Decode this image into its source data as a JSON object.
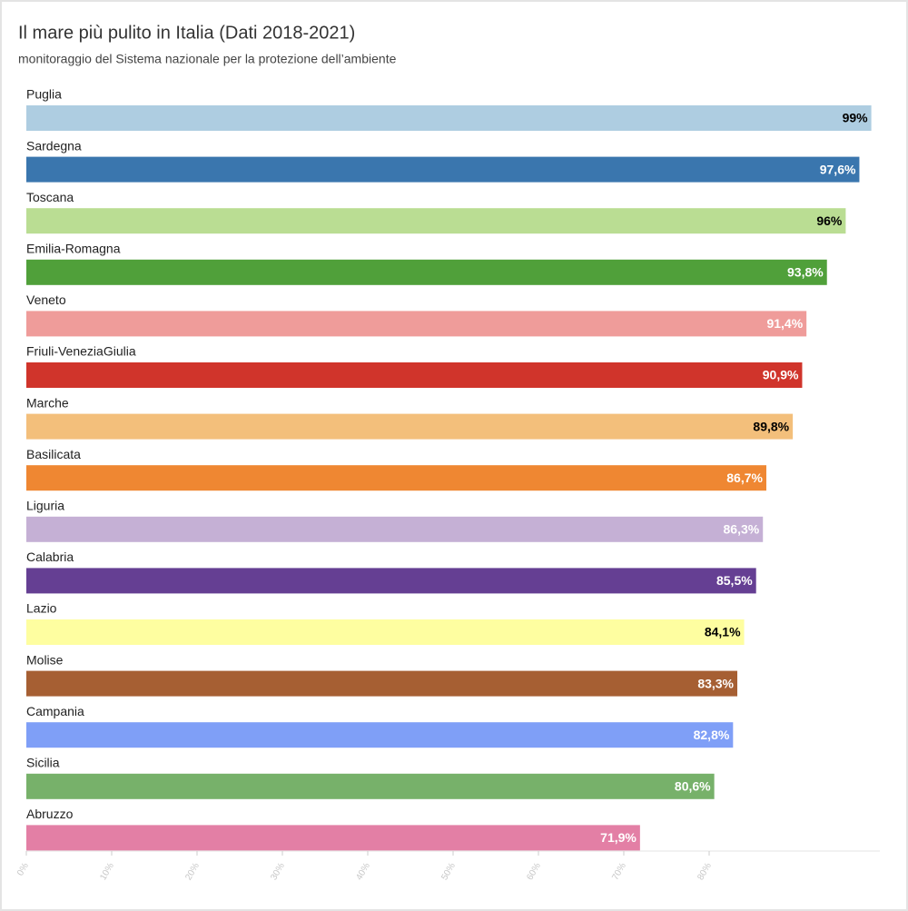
{
  "chart_data": {
    "type": "hbar",
    "title": "Il mare più pulito in Italia (Dati 2018-2021)",
    "subtitle": "monitoraggio del Sistema nazionale per la protezione dell’ambiente",
    "categories": [
      "Puglia",
      "Sardegna",
      "Toscana",
      "Emilia-Romagna",
      "Veneto",
      "Friuli-VeneziaGiulia",
      "Marche",
      "Basilicata",
      "Liguria",
      "Calabria",
      "Lazio",
      "Molise",
      "Campania",
      "Sicilia",
      "Abruzzo"
    ],
    "values": [
      99,
      97.6,
      96,
      93.8,
      91.4,
      90.9,
      89.8,
      86.7,
      86.3,
      85.5,
      84.1,
      83.3,
      82.8,
      80.6,
      71.9
    ],
    "value_labels": [
      "99%",
      "97,6%",
      "96%",
      "93,8%",
      "91,4%",
      "90,9%",
      "89,8%",
      "86,7%",
      "86,3%",
      "85,5%",
      "84,1%",
      "83,3%",
      "82,8%",
      "80,6%",
      "71,9%"
    ],
    "colors": [
      "#aecde1",
      "#3a76ae",
      "#badd93",
      "#50a03a",
      "#ef9c9a",
      "#d0342b",
      "#f3bf7b",
      "#ef8732",
      "#c5b0d5",
      "#653f93",
      "#fefea0",
      "#a65f33",
      "#7f9ff7",
      "#77b16a",
      "#e37fa5"
    ],
    "label_colors": [
      "#000000",
      "#ffffff",
      "#000000",
      "#ffffff",
      "#ffffff",
      "#ffffff",
      "#000000",
      "#ffffff",
      "#ffffff",
      "#ffffff",
      "#000000",
      "#ffffff",
      "#ffffff",
      "#ffffff",
      "#ffffff"
    ],
    "xlim": [
      0,
      100
    ],
    "xticks": [
      {
        "value": 0,
        "label": "0%"
      },
      {
        "value": 10,
        "label": "10%"
      },
      {
        "value": 20,
        "label": "20%"
      },
      {
        "value": 30,
        "label": "30%"
      },
      {
        "value": 40,
        "label": "40%"
      },
      {
        "value": 50,
        "label": "50%"
      },
      {
        "value": 60,
        "label": "60%"
      },
      {
        "value": 70,
        "label": "70%"
      },
      {
        "value": 80,
        "label": "80%"
      }
    ]
  }
}
